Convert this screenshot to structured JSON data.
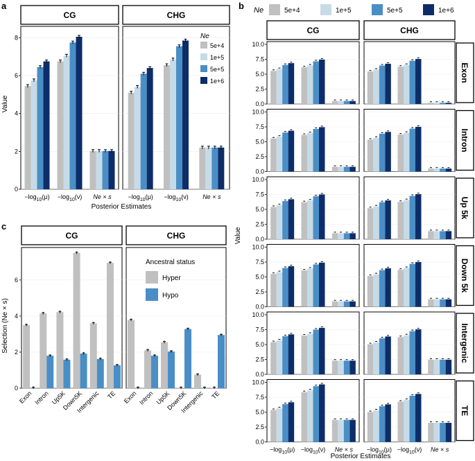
{
  "ne_colors": {
    "5e+4": "#c0c0c0",
    "1e+5": "#c6dbe7",
    "5e+5": "#4a8ec6",
    "1e+6": "#0d2d69"
  },
  "status_colors": {
    "Hyper": "#c0c0c0",
    "Hypo": "#4a8ec6"
  },
  "panel_a": {
    "letter": "a",
    "ylabel": "Value",
    "xlabel": "Posterior Estimates",
    "legend_title": "Ne",
    "legend_items": [
      "5e+4",
      "1e+5",
      "5e+5",
      "1e+6"
    ],
    "categories": [
      "−log10(μ)",
      "−log10(ν)",
      "Ne × s"
    ],
    "y_ticks": [
      "0",
      "2",
      "4",
      "6",
      "8"
    ],
    "facets": [
      {
        "name": "CG",
        "values": [
          [
            5.45,
            5.75,
            6.45,
            6.75
          ],
          [
            6.75,
            7.05,
            7.75,
            8.05
          ],
          [
            2.02,
            2.02,
            2.02,
            2.02
          ]
        ]
      },
      {
        "name": "CHG",
        "values": [
          [
            5.1,
            5.4,
            6.1,
            6.4
          ],
          [
            6.55,
            6.85,
            7.55,
            7.85
          ],
          [
            2.2,
            2.2,
            2.2,
            2.2
          ]
        ]
      }
    ]
  },
  "panel_b": {
    "letter": "b",
    "legend_title": "Ne",
    "legend_items": [
      "5e+4",
      "1e+5",
      "5e+5",
      "1e+6"
    ],
    "ylabel": "Value",
    "xlabel": "Posterior Estimates",
    "categories": [
      "−log10(μ)",
      "−log10(ν)",
      "Ne × s"
    ],
    "y_ticks": [
      "0.0",
      "2.5",
      "5.0",
      "7.5",
      "10.0"
    ],
    "columns": [
      "CG",
      "CHG"
    ],
    "rows": [
      "Exon",
      "Intron",
      "Up 5k",
      "Down 5k",
      "Intergenic",
      "TE"
    ]
  },
  "panel_c": {
    "letter": "c",
    "ylabel": "Selection (Ne × s)",
    "legend_title": "Ancestral status",
    "legend_items": [
      "Hyper",
      "Hypo"
    ],
    "categories": [
      "Exon",
      "Intron",
      "Up5K",
      "Down5K",
      "Intergenic",
      "TE"
    ],
    "y_ticks": [
      "0",
      "2",
      "4",
      "6"
    ],
    "facets": [
      {
        "name": "CG",
        "hyper": [
          3.5,
          4.15,
          4.22,
          7.5,
          3.6,
          6.95
        ],
        "hypo": [
          0.02,
          1.8,
          1.58,
          1.92,
          1.62,
          1.27
        ]
      },
      {
        "name": "CHG",
        "hyper": [
          3.78,
          2.1,
          2.55,
          0.02,
          0.75,
          0.02
        ],
        "hypo": [
          0.02,
          1.8,
          2.03,
          3.28,
          0.02,
          2.95
        ]
      }
    ]
  },
  "chart_data": [
    {
      "type": "bar",
      "title": "a",
      "xlabel": "Posterior Estimates",
      "ylabel": "Value",
      "ylim": [
        0,
        8.6
      ],
      "facets": [
        "CG",
        "CHG"
      ],
      "categories": [
        "−log10(μ)",
        "−log10(ν)",
        "Ne × s"
      ],
      "series_names": [
        "5e+4",
        "1e+5",
        "5e+5",
        "1e+6"
      ],
      "values": {
        "CG": [
          [
            5.45,
            5.75,
            6.45,
            6.75
          ],
          [
            6.75,
            7.05,
            7.75,
            8.05
          ],
          [
            2.02,
            2.02,
            2.02,
            2.02
          ]
        ],
        "CHG": [
          [
            5.1,
            5.4,
            6.1,
            6.4
          ],
          [
            6.55,
            6.85,
            7.55,
            7.85
          ],
          [
            2.2,
            2.2,
            2.2,
            2.2
          ]
        ]
      }
    },
    {
      "type": "bar",
      "title": "b",
      "xlabel": "Posterior Estimates",
      "ylabel": "Value",
      "ylim": [
        0,
        10
      ],
      "columns": [
        "CG",
        "CHG"
      ],
      "rows": [
        "Exon",
        "Intron",
        "Up 5k",
        "Down 5k",
        "Intergenic",
        "TE"
      ],
      "categories": [
        "−log10(μ)",
        "−log10(ν)",
        "Ne × s"
      ],
      "series_names": [
        "5e+4",
        "1e+5",
        "5e+5",
        "1e+6"
      ],
      "values": {
        "CG": [
          [
            [
              5.55,
              5.85,
              6.55,
              6.85
            ],
            [
              6.15,
              6.45,
              7.15,
              7.45
            ],
            [
              0.5,
              0.5,
              0.5,
              0.5
            ]
          ],
          [
            [
              5.55,
              5.85,
              6.55,
              6.85
            ],
            [
              6.15,
              6.45,
              7.15,
              7.45
            ],
            [
              0.8,
              0.8,
              0.8,
              0.8
            ]
          ],
          [
            [
              5.4,
              5.7,
              6.4,
              6.7
            ],
            [
              6.2,
              6.5,
              7.2,
              7.5
            ],
            [
              1.0,
              1.0,
              1.0,
              1.0
            ]
          ],
          [
            [
              5.5,
              5.8,
              6.5,
              6.8
            ],
            [
              6.1,
              6.4,
              7.1,
              7.4
            ],
            [
              0.9,
              0.9,
              0.9,
              0.9
            ]
          ],
          [
            [
              5.4,
              5.7,
              6.4,
              6.7
            ],
            [
              6.5,
              6.8,
              7.5,
              7.8
            ],
            [
              2.3,
              2.3,
              2.3,
              2.3
            ]
          ],
          [
            [
              5.35,
              5.65,
              6.35,
              6.65
            ],
            [
              8.35,
              8.65,
              9.35,
              9.65
            ],
            [
              3.7,
              3.7,
              3.7,
              3.7
            ]
          ]
        ],
        "CHG": [
          [
            [
              5.45,
              5.75,
              6.45,
              6.75
            ],
            [
              6.25,
              6.55,
              7.25,
              7.55
            ],
            [
              0.2,
              0.2,
              0.2,
              0.2
            ]
          ],
          [
            [
              5.35,
              5.65,
              6.35,
              6.65
            ],
            [
              6.2,
              6.5,
              7.2,
              7.5
            ],
            [
              0.5,
              0.5,
              0.5,
              0.5
            ]
          ],
          [
            [
              5.2,
              5.5,
              6.2,
              6.5
            ],
            [
              6.25,
              6.55,
              7.25,
              7.55
            ],
            [
              1.35,
              1.35,
              1.35,
              1.35
            ]
          ],
          [
            [
              5.15,
              5.45,
              6.15,
              6.45
            ],
            [
              6.2,
              6.5,
              7.2,
              7.5
            ],
            [
              1.25,
              1.25,
              1.25,
              1.25
            ]
          ],
          [
            [
              5.05,
              5.35,
              6.05,
              6.35
            ],
            [
              6.25,
              6.55,
              7.25,
              7.55
            ],
            [
              2.45,
              2.45,
              2.45,
              2.45
            ]
          ],
          [
            [
              5.0,
              5.3,
              6.0,
              6.3
            ],
            [
              6.75,
              7.05,
              7.75,
              8.05
            ],
            [
              3.2,
              3.2,
              3.2,
              3.2
            ]
          ]
        ]
      }
    },
    {
      "type": "bar",
      "title": "c",
      "xlabel": "",
      "ylabel": "Selection (Ne × s)",
      "ylim": [
        0,
        7.8
      ],
      "facets": [
        "CG",
        "CHG"
      ],
      "categories": [
        "Exon",
        "Intron",
        "Up5K",
        "Down5K",
        "Intergenic",
        "TE"
      ],
      "series": [
        {
          "name": "Hyper",
          "CG": [
            3.5,
            4.15,
            4.22,
            7.5,
            3.6,
            6.95
          ],
          "CHG": [
            3.78,
            2.1,
            2.55,
            0.02,
            0.75,
            0.02
          ]
        },
        {
          "name": "Hypo",
          "CG": [
            0.02,
            1.8,
            1.58,
            1.92,
            1.62,
            1.27
          ],
          "CHG": [
            0.02,
            1.8,
            2.03,
            3.28,
            0.02,
            2.95
          ]
        }
      ]
    }
  ]
}
